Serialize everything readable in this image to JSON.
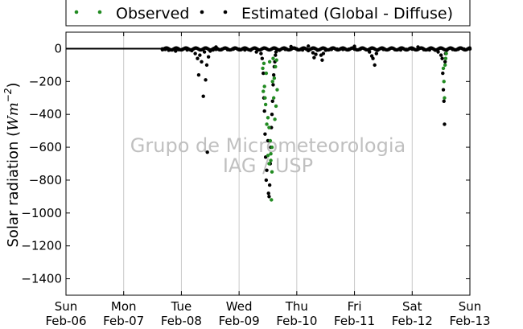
{
  "chart_data": {
    "type": "scatter",
    "ylabel_text": "Solar radiation (",
    "ylabel_math": "Wm",
    "ylabel_sup": "−2",
    "ylabel_close": ")",
    "watermark_line1": "Grupo de Micrometeorologia",
    "watermark_line2": "IAG / USP",
    "ylim": [
      -1500,
      100
    ],
    "yticks": [
      0,
      -200,
      -400,
      -600,
      -800,
      -1000,
      -1200,
      -1400
    ],
    "ytick_labels": [
      "0",
      "−200",
      "−400",
      "−600",
      "−800",
      "−1000",
      "−1200",
      "−1400"
    ],
    "xlim": [
      0,
      7
    ],
    "xticks": [
      0,
      1,
      2,
      3,
      4,
      5,
      6,
      7
    ],
    "xtick_labels_day": [
      "Sun",
      "Mon",
      "Tue",
      "Wed",
      "Thu",
      "Fri",
      "Sat",
      "Sun"
    ],
    "xtick_labels_date": [
      "Feb-06",
      "Feb-07",
      "Feb-08",
      "Feb-09",
      "Feb-10",
      "Feb-11",
      "Feb-12",
      "Feb-13"
    ],
    "grid": "vertical",
    "legend_position": "top",
    "colors": {
      "observed": "#228b22",
      "estimated": "#000000",
      "grid": "#c8c8c8",
      "watermark": "#c0c0c0"
    },
    "series": [
      {
        "name": "Observed",
        "color": "#228b22",
        "points": [
          [
            3.42,
            -260
          ],
          [
            3.44,
            -230
          ],
          [
            3.45,
            -300
          ],
          [
            3.46,
            -340
          ],
          [
            3.48,
            -460
          ],
          [
            3.5,
            -420
          ],
          [
            3.52,
            -480
          ],
          [
            3.54,
            -560
          ],
          [
            3.55,
            -680
          ],
          [
            3.56,
            -920
          ],
          [
            3.57,
            -600
          ],
          [
            3.58,
            -200
          ],
          [
            3.6,
            -300
          ],
          [
            3.62,
            -430
          ],
          [
            3.64,
            -350
          ],
          [
            3.66,
            -250
          ],
          [
            3.41,
            -120
          ],
          [
            3.43,
            -90
          ],
          [
            3.47,
            -150
          ],
          [
            3.53,
            -80
          ],
          [
            3.59,
            -60
          ],
          [
            3.61,
            -180
          ],
          [
            3.63,
            -110
          ],
          [
            3.65,
            -70
          ],
          [
            3.5,
            -650
          ],
          [
            3.52,
            -700
          ],
          [
            3.55,
            -640
          ],
          [
            3.57,
            -750
          ],
          [
            6.55,
            -200
          ],
          [
            6.56,
            -300
          ],
          [
            6.57,
            -100
          ],
          [
            6.58,
            -60
          ],
          [
            6.54,
            -120
          ],
          [
            6.59,
            -30
          ]
        ]
      },
      {
        "name": "Estimated (Global - Diffuse)",
        "color": "#000000",
        "points": [
          [
            1.67,
            -2
          ],
          [
            1.72,
            -5
          ],
          [
            1.78,
            -10
          ],
          [
            1.84,
            -8
          ],
          [
            1.9,
            -15
          ],
          [
            1.95,
            -6
          ],
          [
            2.02,
            -4
          ],
          [
            2.1,
            -8
          ],
          [
            2.18,
            -12
          ],
          [
            2.24,
            -30
          ],
          [
            2.28,
            -60
          ],
          [
            2.3,
            -160
          ],
          [
            2.32,
            -40
          ],
          [
            2.35,
            -80
          ],
          [
            2.38,
            -290
          ],
          [
            2.4,
            -20
          ],
          [
            2.42,
            -190
          ],
          [
            2.44,
            -100
          ],
          [
            2.45,
            -630
          ],
          [
            2.47,
            -50
          ],
          [
            2.5,
            -15
          ],
          [
            2.55,
            -8
          ],
          [
            2.6,
            -5
          ],
          [
            2.7,
            -4
          ],
          [
            2.8,
            -6
          ],
          [
            2.9,
            -3
          ],
          [
            3.0,
            -4
          ],
          [
            3.1,
            -8
          ],
          [
            3.2,
            -10
          ],
          [
            3.3,
            -20
          ],
          [
            3.38,
            -30
          ],
          [
            3.4,
            -60
          ],
          [
            3.42,
            -150
          ],
          [
            3.43,
            -300
          ],
          [
            3.44,
            -380
          ],
          [
            3.45,
            -520
          ],
          [
            3.46,
            -660
          ],
          [
            3.47,
            -800
          ],
          [
            3.48,
            -740
          ],
          [
            3.5,
            -560
          ],
          [
            3.51,
            -880
          ],
          [
            3.52,
            -900
          ],
          [
            3.53,
            -830
          ],
          [
            3.54,
            -700
          ],
          [
            3.55,
            -600
          ],
          [
            3.56,
            -480
          ],
          [
            3.57,
            -400
          ],
          [
            3.58,
            -320
          ],
          [
            3.59,
            -220
          ],
          [
            3.6,
            -160
          ],
          [
            3.61,
            -110
          ],
          [
            3.62,
            -80
          ],
          [
            3.63,
            -40
          ],
          [
            3.64,
            -20
          ],
          [
            3.7,
            -10
          ],
          [
            3.8,
            -5
          ],
          [
            3.9,
            -4
          ],
          [
            4.0,
            -2
          ],
          [
            4.1,
            -8
          ],
          [
            4.2,
            -12
          ],
          [
            4.28,
            -25
          ],
          [
            4.3,
            -55
          ],
          [
            4.33,
            -35
          ],
          [
            4.36,
            -10
          ],
          [
            4.42,
            -40
          ],
          [
            4.44,
            -70
          ],
          [
            4.46,
            -30
          ],
          [
            4.5,
            -10
          ],
          [
            4.6,
            -5
          ],
          [
            4.7,
            -3
          ],
          [
            4.8,
            -5
          ],
          [
            4.9,
            -4
          ],
          [
            5.0,
            -3
          ],
          [
            5.1,
            -4
          ],
          [
            5.2,
            -6
          ],
          [
            5.26,
            -20
          ],
          [
            5.3,
            -45
          ],
          [
            5.32,
            -60
          ],
          [
            5.35,
            -100
          ],
          [
            5.38,
            -30
          ],
          [
            5.4,
            -10
          ],
          [
            5.5,
            -5
          ],
          [
            5.6,
            -4
          ],
          [
            5.7,
            -6
          ],
          [
            5.8,
            -8
          ],
          [
            5.9,
            -5
          ],
          [
            6.0,
            -3
          ],
          [
            6.1,
            -4
          ],
          [
            6.2,
            -6
          ],
          [
            6.3,
            -8
          ],
          [
            6.4,
            -10
          ],
          [
            6.45,
            -20
          ],
          [
            6.5,
            -40
          ],
          [
            6.52,
            -60
          ],
          [
            6.53,
            -150
          ],
          [
            6.54,
            -250
          ],
          [
            6.55,
            -320
          ],
          [
            6.56,
            -460
          ],
          [
            6.57,
            -80
          ],
          [
            6.58,
            -30
          ],
          [
            6.6,
            -10
          ],
          [
            6.7,
            -5
          ],
          [
            6.8,
            -4
          ],
          [
            6.9,
            -3
          ],
          [
            7.0,
            -2
          ],
          [
            2.6,
            10
          ],
          [
            3.9,
            12
          ],
          [
            4.2,
            15
          ],
          [
            5.0,
            14
          ],
          [
            6.1,
            10
          ]
        ]
      }
    ]
  }
}
